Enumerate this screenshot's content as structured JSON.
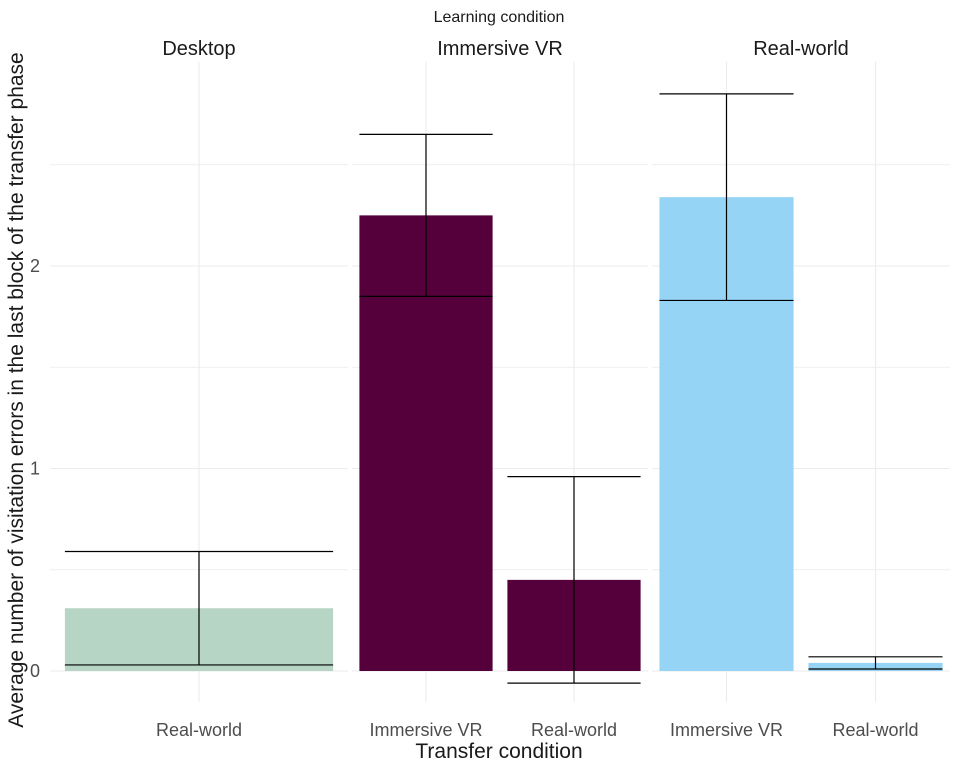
{
  "chart_data": {
    "type": "bar",
    "title": "Learning condition",
    "xlabel": "Transfer condition",
    "ylabel": "Average number of visitation errors in the last block of the transfer phase",
    "ylim": [
      -0.15,
      3.0
    ],
    "yticks": [
      0,
      1,
      2
    ],
    "grid": true,
    "legend": "none",
    "error_bars": true,
    "panels": [
      {
        "name": "Desktop",
        "color": "#b7d5c4",
        "categories": [
          "Real-world"
        ],
        "values": [
          0.31
        ],
        "error_low": [
          0.03
        ],
        "error_high": [
          0.59
        ]
      },
      {
        "name": "Immersive VR",
        "color": "#55003a",
        "categories": [
          "Immersive VR",
          "Real-world"
        ],
        "values": [
          2.25,
          0.45
        ],
        "error_low": [
          1.85,
          -0.06
        ],
        "error_high": [
          2.65,
          0.96
        ]
      },
      {
        "name": "Real-world",
        "color": "#95d4f5",
        "categories": [
          "Immersive VR",
          "Real-world"
        ],
        "values": [
          2.34,
          0.04
        ],
        "error_low": [
          1.83,
          0.01
        ],
        "error_high": [
          2.85,
          0.07
        ]
      }
    ]
  }
}
